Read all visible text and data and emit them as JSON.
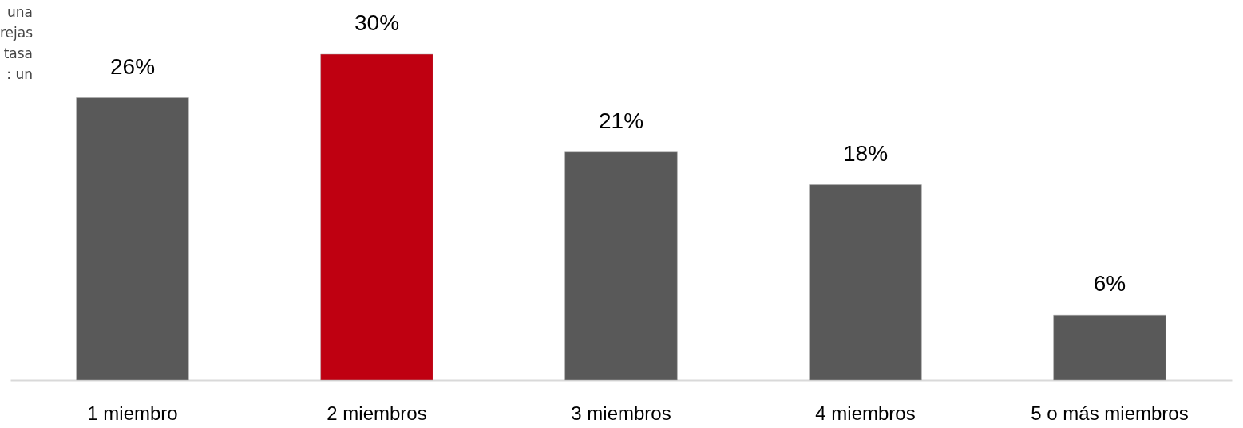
{
  "chart_data": {
    "type": "bar",
    "categories": [
      "1 miembro",
      "2 miembros",
      "3 miembros",
      "4 miembros",
      "5 o más miembros"
    ],
    "values": [
      26,
      30,
      21,
      18,
      6
    ],
    "colors": [
      "#595959",
      "#bf0011",
      "#595959",
      "#595959",
      "#595959"
    ],
    "value_labels": [
      "26%",
      "30%",
      "21%",
      "18%",
      "6%"
    ],
    "annotations": [
      "una",
      "rejas",
      "tasa",
      ": un"
    ]
  }
}
